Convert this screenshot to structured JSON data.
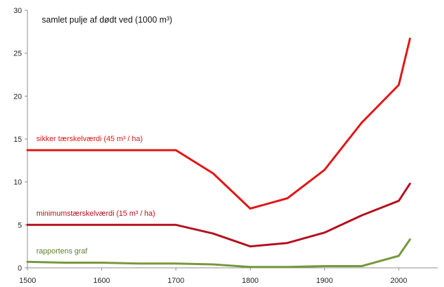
{
  "chart_data": {
    "type": "line",
    "title": "samlet pulje af dødt ved (1000 m³)",
    "xlabel": "",
    "ylabel": "",
    "xlim": [
      1500,
      2030
    ],
    "ylim": [
      0,
      30
    ],
    "x_ticks": [
      1500,
      1600,
      1700,
      1800,
      1900,
      2000
    ],
    "x_tick_labels": [
      "1500",
      "1600",
      "1700",
      "1800",
      "1900",
      "2000"
    ],
    "y_ticks": [
      0,
      5,
      10,
      15,
      20,
      25,
      30
    ],
    "y_tick_labels": [
      "0",
      "5",
      "10",
      "15",
      "20",
      "25",
      "30"
    ],
    "grid": false,
    "legend": "none",
    "series": [
      {
        "name": "sikker tærskelværdi (45 m³ / ha)",
        "color": "#e41414",
        "points": [
          [
            1500,
            13.7
          ],
          [
            1700,
            13.7
          ],
          [
            1750,
            11.0
          ],
          [
            1800,
            6.9
          ],
          [
            1850,
            8.1
          ],
          [
            1900,
            11.4
          ],
          [
            1950,
            16.9
          ],
          [
            2000,
            21.3
          ],
          [
            2015,
            26.7
          ]
        ]
      },
      {
        "name": "minimumstærskelværdi (15 m³ / ha)",
        "color": "#b3101c",
        "points": [
          [
            1500,
            5.0
          ],
          [
            1700,
            5.0
          ],
          [
            1750,
            4.0
          ],
          [
            1800,
            2.5
          ],
          [
            1850,
            2.9
          ],
          [
            1900,
            4.1
          ],
          [
            1950,
            6.1
          ],
          [
            2000,
            7.8
          ],
          [
            2015,
            9.8
          ]
        ]
      },
      {
        "name": "rapportens graf",
        "color": "#76983a",
        "points": [
          [
            1500,
            0.7
          ],
          [
            1550,
            0.6
          ],
          [
            1600,
            0.6
          ],
          [
            1650,
            0.5
          ],
          [
            1700,
            0.5
          ],
          [
            1750,
            0.4
          ],
          [
            1800,
            0.1
          ],
          [
            1850,
            0.1
          ],
          [
            1900,
            0.2
          ],
          [
            1950,
            0.2
          ],
          [
            2000,
            1.4
          ],
          [
            2015,
            3.3
          ]
        ]
      }
    ]
  }
}
